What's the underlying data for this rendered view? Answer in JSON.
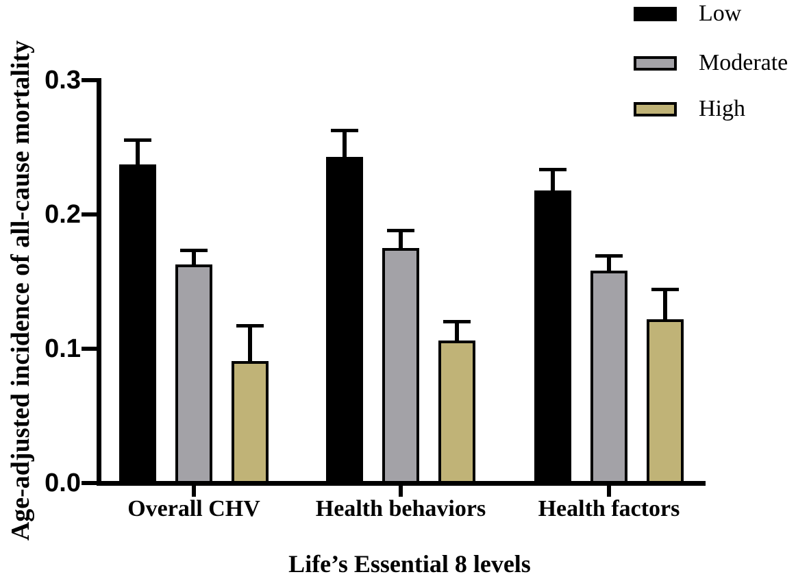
{
  "chart_data": {
    "type": "bar",
    "title": "",
    "xlabel": "Life’s Essential 8 levels",
    "ylabel": "Age-adjusted incidence of all-cause mortality",
    "categories": [
      "Overall CHV",
      "Health behaviors",
      "Health factors"
    ],
    "series": [
      {
        "name": "Low",
        "color": "#000000",
        "values": [
          0.237,
          0.243,
          0.218
        ],
        "errors": [
          0.018,
          0.019,
          0.015
        ]
      },
      {
        "name": "Moderate",
        "color": "#a3a2a7",
        "values": [
          0.163,
          0.175,
          0.158
        ],
        "errors": [
          0.01,
          0.013,
          0.011
        ]
      },
      {
        "name": "High",
        "color": "#c0b377",
        "values": [
          0.091,
          0.106,
          0.122
        ],
        "errors": [
          0.026,
          0.014,
          0.022
        ]
      }
    ],
    "ylim": [
      0,
      0.3
    ],
    "yticks": [
      0.0,
      0.1,
      0.2,
      0.3
    ],
    "ytick_labels": [
      "0.0",
      "0.1",
      "0.2",
      "0.3"
    ],
    "error_bars": "upper standard-error whiskers with caps",
    "bar_outline_color": "#000000",
    "axis_color": "#000000",
    "legend_position": "top-right",
    "grid": false
  }
}
